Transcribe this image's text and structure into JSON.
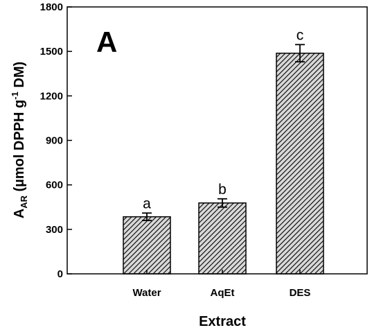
{
  "chart_data": {
    "type": "bar",
    "panel_label": "A",
    "categories": [
      "Water",
      "AqEt",
      "DES"
    ],
    "values": [
      385,
      478,
      1488
    ],
    "errors": [
      25,
      28,
      58
    ],
    "significance": [
      "a",
      "b",
      "c"
    ],
    "xlabel": "Extract",
    "ylabel": {
      "main": "A",
      "main_sub": "AR",
      "units_prefix": " (µmol DPPH g",
      "units_sup": "-1",
      "units_suffix": " DM)"
    },
    "ylim": [
      0,
      1800
    ],
    "yticks": [
      0,
      300,
      600,
      900,
      1200,
      1500,
      1800
    ],
    "grid": false,
    "legend": "none",
    "bar_fill": "hatched",
    "colors": {
      "bar_fill": "#d8d8d8",
      "hatch": "#000000",
      "panel_label": "#7f7f7f",
      "axis": "#000000"
    }
  }
}
